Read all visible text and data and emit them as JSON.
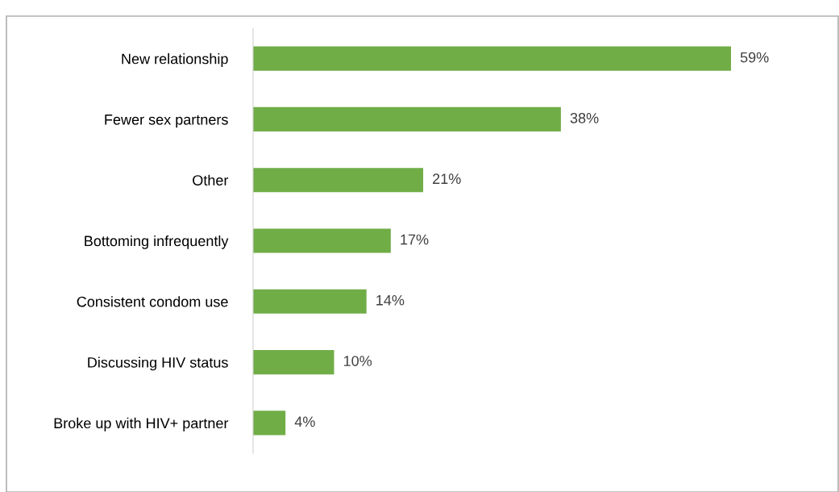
{
  "chart_data": {
    "type": "bar",
    "orientation": "horizontal",
    "categories": [
      "New relationship",
      "Fewer sex partners",
      "Other",
      "Bottoming infrequently",
      "Consistent condom use",
      "Discussing HIV status",
      "Broke up with HIV+ partner"
    ],
    "values": [
      59,
      38,
      21,
      17,
      14,
      10,
      4
    ],
    "value_labels": [
      "59%",
      "38%",
      "21%",
      "17%",
      "14%",
      "10%",
      "4%"
    ],
    "color": "#70ad47",
    "grid": false,
    "legend": false
  }
}
